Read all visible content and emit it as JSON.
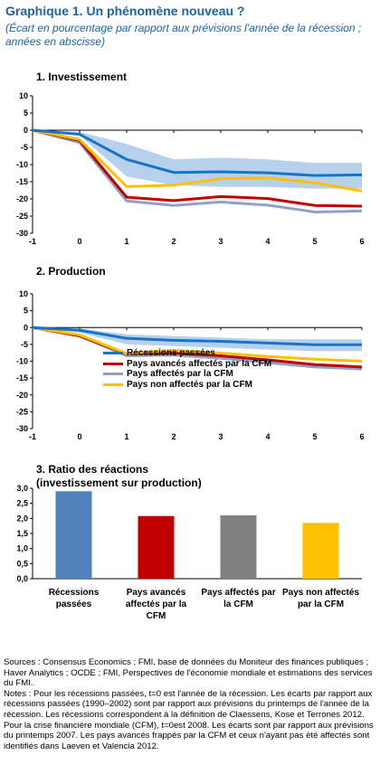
{
  "title": "Graphique 1. Un phénomène nouveau ?",
  "subtitle": "(Écart en pourcentage par rapport aux prévisions l'année de la récession ; années en abscisse)",
  "colors": {
    "recessions": "#1874c6",
    "avances_cfm": "#c00000",
    "affectes_cfm": "#8ea2c8",
    "non_affectes": "#ffc000",
    "band": "#b7d1ec",
    "bar_recessions": "#4f81bd",
    "bar_avances": "#c00000",
    "bar_affectes": "#808080",
    "bar_non_affectes": "#ffc000"
  },
  "legend": [
    {
      "name": "Récessions passées",
      "color": "#1874c6"
    },
    {
      "name": "Pays avancés affectés par la CFM",
      "color": "#c00000"
    },
    {
      "name": "Pays affectés par la CFM",
      "color": "#8ea2c8"
    },
    {
      "name": "Pays non affectés par la CFM",
      "color": "#ffc000"
    }
  ],
  "chart_data": [
    {
      "type": "line",
      "title": "1. Investissement",
      "x": [
        -1,
        0,
        1,
        2,
        3,
        4,
        5,
        6
      ],
      "xlim": [
        -1,
        6
      ],
      "ylim": [
        -30,
        10
      ],
      "yticks": [
        10,
        5,
        0,
        -5,
        -10,
        -15,
        -20,
        -25,
        -30
      ],
      "band": {
        "upper": [
          0,
          -0.5,
          -4,
          -8.5,
          -8,
          -8.5,
          -9.5,
          -9.5
        ],
        "lower": [
          0,
          -1.5,
          -13.5,
          -16,
          -16.5,
          -16.5,
          -17,
          -17
        ]
      },
      "series": [
        {
          "name": "Récessions passées",
          "values": [
            0,
            -1.2,
            -8.5,
            -12.3,
            -12.1,
            -12.4,
            -13.2,
            -13.0
          ]
        },
        {
          "name": "Pays avancés affectés par la CFM",
          "values": [
            0,
            -3.0,
            -19.5,
            -20.5,
            -19.3,
            -19.9,
            -21.9,
            -22.1
          ]
        },
        {
          "name": "Pays affectés par la CFM",
          "values": [
            0,
            -3.6,
            -20.6,
            -21.9,
            -20.9,
            -21.8,
            -23.8,
            -23.5
          ]
        },
        {
          "name": "Pays non affectés par la CFM",
          "values": [
            0,
            -2.7,
            -16.4,
            -16.0,
            -14.1,
            -13.9,
            -15.3,
            -17.7
          ]
        }
      ]
    },
    {
      "type": "line",
      "title": "2. Production",
      "x": [
        -1,
        0,
        1,
        2,
        3,
        4,
        5,
        6
      ],
      "xlim": [
        -1,
        6
      ],
      "ylim": [
        -30,
        10
      ],
      "yticks": [
        10,
        5,
        0,
        -5,
        -10,
        -15,
        -20,
        -25,
        -30
      ],
      "band": {
        "upper": [
          0,
          -0.3,
          -2,
          -2.5,
          -3,
          -3.5,
          -3.5,
          -3.5
        ],
        "lower": [
          0,
          -1.5,
          -5,
          -5.5,
          -6,
          -6.5,
          -7,
          -7
        ]
      },
      "series": [
        {
          "name": "Récessions passées",
          "values": [
            0,
            -0.8,
            -3.2,
            -3.8,
            -4.1,
            -4.6,
            -5.1,
            -5.1
          ]
        },
        {
          "name": "Pays avancés affectés par la CFM",
          "values": [
            0,
            -2.5,
            -7.8,
            -7.6,
            -8.4,
            -9.6,
            -11.0,
            -11.7
          ]
        },
        {
          "name": "Pays affectés par la CFM",
          "values": [
            0,
            -2.5,
            -8.4,
            -8.2,
            -9.1,
            -10.4,
            -11.7,
            -12.3
          ]
        },
        {
          "name": "Pays non affectés par la CFM",
          "values": [
            0,
            -2.2,
            -7.7,
            -6.7,
            -7.6,
            -8.6,
            -9.4,
            -10.0
          ]
        }
      ]
    },
    {
      "type": "bar",
      "title": "3. Ratio des réactions",
      "subtitle": "(investissement sur production)",
      "categories": [
        "Récessions passées",
        "Pays avancés affectés par la CFM",
        "Pays affectés par la CFM",
        "Pays non affectés par la CFM"
      ],
      "values": [
        2.9,
        2.08,
        2.1,
        1.85
      ],
      "ylim": [
        0,
        3.0
      ],
      "yticks": [
        "3,0",
        "2,5",
        "2,0",
        "1,5",
        "1,0",
        "0,5",
        "0,0"
      ]
    }
  ],
  "notes": {
    "sources": "Sources : Consensus Economics ; FMI, base de données du Moniteur des finances publiques ; Haver Analytics ; OCDE ; FMI, Perspectives de l'économie mondiale et estimations des services du FMI.",
    "notes_text": "Notes : Pour les récessions passées, t=0 est l'année de la récession. Les écarts par rapport aux récessions passées (1990–2002) sont par rapport aux prévisions du printemps de l'année de la récession. Les récessions correspondent à la définition de Claessens, Kose et Terrones 2012. Pour la crise financière mondiale (CFM), t=0est 2008. Les écarts sont par rapport aux prévisions du printemps 2007. Les pays avancés frappés par la CFM et ceux n'ayant pas été affectés sont identifiés dans Laeven et Valencia 2012."
  }
}
